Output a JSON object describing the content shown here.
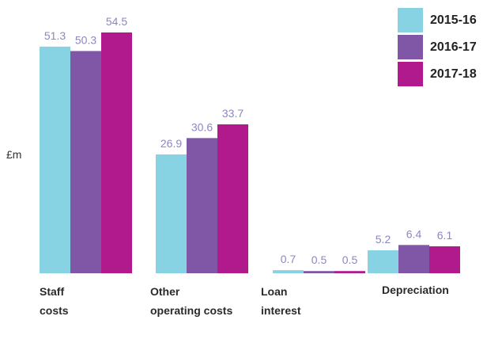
{
  "chart_data": {
    "type": "bar",
    "ylabel": "£m",
    "categories": [
      [
        "Staff",
        "costs"
      ],
      [
        "Other",
        "operating costs"
      ],
      [
        "Loan",
        "interest"
      ],
      [
        "Depreciation"
      ]
    ],
    "series": [
      {
        "name": "2015-16",
        "color": "#87d3e3",
        "values": [
          51.3,
          26.9,
          0.7,
          5.2
        ]
      },
      {
        "name": "2016-17",
        "color": "#7f57a6",
        "values": [
          50.3,
          30.6,
          0.5,
          6.4
        ]
      },
      {
        "name": "2017-18",
        "color": "#b01a8d",
        "values": [
          54.5,
          33.7,
          0.5,
          6.1
        ]
      }
    ],
    "data_label_color": "#8e86c2",
    "ylim": [
      0,
      54.5
    ],
    "grid": false,
    "legend_position": "top-right"
  }
}
